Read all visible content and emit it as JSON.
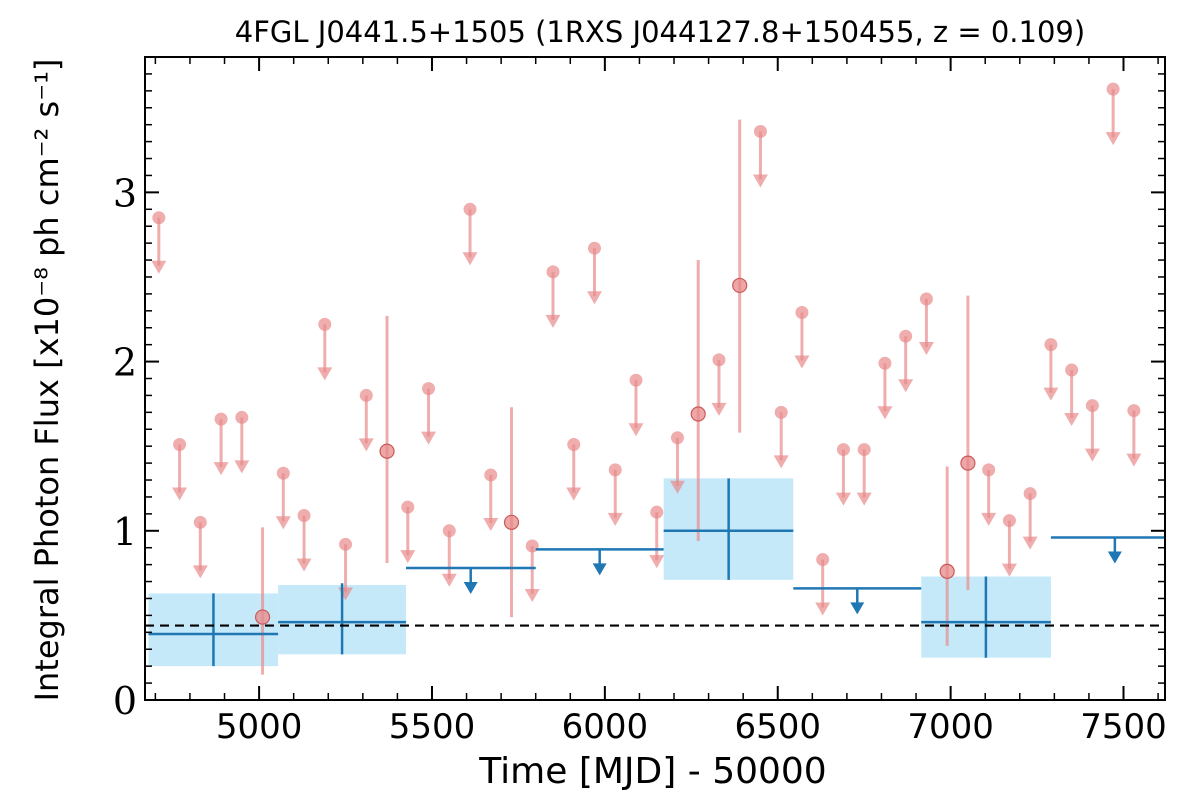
{
  "chart_data": {
    "type": "scatter",
    "title": "4FGL J0441.5+1505 (1RXS J044127.8+150455, z = 0.109)",
    "xlabel": "Time [MJD] - 50000",
    "ylabel": "Integral Photon Flux [x10⁻⁸ ph cm⁻² s⁻¹]",
    "xlim": [
      4670,
      7620
    ],
    "ylim": [
      0,
      3.8
    ],
    "x_ticks": [
      5000,
      5500,
      6000,
      6500,
      7000,
      7500
    ],
    "y_ticks": [
      0,
      1,
      2,
      3
    ],
    "x_tick_labels": [
      "5000",
      "5500",
      "6000",
      "6500",
      "7000",
      "7500"
    ],
    "y_tick_labels": [
      "0",
      "1",
      "2",
      "3"
    ],
    "grid": false,
    "average_flux": 0.44,
    "colors": {
      "fine_bins": "#e88a8a",
      "coarse_bins": "#1f77b4",
      "coarse_band": "#c6e9fa",
      "average_line": "#000000"
    },
    "series": [
      {
        "bin_width": 60,
        "points": [
          {
            "x": 4710,
            "y": 2.85,
            "upper_limit": true
          },
          {
            "x": 4770,
            "y": 1.51,
            "upper_limit": true
          },
          {
            "x": 4830,
            "y": 1.05,
            "upper_limit": true
          },
          {
            "x": 4890,
            "y": 1.66,
            "upper_limit": true
          },
          {
            "x": 4950,
            "y": 1.67,
            "upper_limit": true
          },
          {
            "x": 5010,
            "y": 0.49,
            "upper_limit": false,
            "err_low": 0.34,
            "err_high": 0.53
          },
          {
            "x": 5070,
            "y": 1.34,
            "upper_limit": true
          },
          {
            "x": 5130,
            "y": 1.09,
            "upper_limit": true
          },
          {
            "x": 5190,
            "y": 2.22,
            "upper_limit": true
          },
          {
            "x": 5250,
            "y": 0.92,
            "upper_limit": true
          },
          {
            "x": 5310,
            "y": 1.8,
            "upper_limit": true
          },
          {
            "x": 5370,
            "y": 1.47,
            "upper_limit": false,
            "err_low": 0.66,
            "err_high": 0.8
          },
          {
            "x": 5430,
            "y": 1.14,
            "upper_limit": true
          },
          {
            "x": 5490,
            "y": 1.84,
            "upper_limit": true
          },
          {
            "x": 5550,
            "y": 1.0,
            "upper_limit": true
          },
          {
            "x": 5610,
            "y": 2.9,
            "upper_limit": true
          },
          {
            "x": 5670,
            "y": 1.33,
            "upper_limit": true
          },
          {
            "x": 5730,
            "y": 1.05,
            "upper_limit": false,
            "err_low": 0.56,
            "err_high": 0.68
          },
          {
            "x": 5790,
            "y": 0.91,
            "upper_limit": true
          },
          {
            "x": 5850,
            "y": 2.53,
            "upper_limit": true
          },
          {
            "x": 5910,
            "y": 1.51,
            "upper_limit": true
          },
          {
            "x": 5970,
            "y": 2.67,
            "upper_limit": true
          },
          {
            "x": 6030,
            "y": 1.36,
            "upper_limit": true
          },
          {
            "x": 6090,
            "y": 1.89,
            "upper_limit": true
          },
          {
            "x": 6150,
            "y": 1.11,
            "upper_limit": true
          },
          {
            "x": 6210,
            "y": 1.55,
            "upper_limit": true
          },
          {
            "x": 6270,
            "y": 1.69,
            "upper_limit": false,
            "err_low": 0.75,
            "err_high": 0.91
          },
          {
            "x": 6330,
            "y": 2.01,
            "upper_limit": true
          },
          {
            "x": 6390,
            "y": 2.45,
            "upper_limit": false,
            "err_low": 0.87,
            "err_high": 0.98
          },
          {
            "x": 6450,
            "y": 3.36,
            "upper_limit": true
          },
          {
            "x": 6510,
            "y": 1.7,
            "upper_limit": true
          },
          {
            "x": 6570,
            "y": 2.29,
            "upper_limit": true
          },
          {
            "x": 6630,
            "y": 0.83,
            "upper_limit": true
          },
          {
            "x": 6690,
            "y": 1.48,
            "upper_limit": true
          },
          {
            "x": 6750,
            "y": 1.48,
            "upper_limit": true
          },
          {
            "x": 6810,
            "y": 1.99,
            "upper_limit": true
          },
          {
            "x": 6870,
            "y": 2.15,
            "upper_limit": true
          },
          {
            "x": 6930,
            "y": 2.37,
            "upper_limit": true
          },
          {
            "x": 6990,
            "y": 0.76,
            "upper_limit": false,
            "err_low": 0.44,
            "err_high": 0.62
          },
          {
            "x": 7050,
            "y": 1.4,
            "upper_limit": false,
            "err_low": 0.75,
            "err_high": 0.99
          },
          {
            "x": 7110,
            "y": 1.36,
            "upper_limit": true
          },
          {
            "x": 7170,
            "y": 1.06,
            "upper_limit": true
          },
          {
            "x": 7230,
            "y": 1.22,
            "upper_limit": true
          },
          {
            "x": 7290,
            "y": 2.1,
            "upper_limit": true
          },
          {
            "x": 7350,
            "y": 1.95,
            "upper_limit": true
          },
          {
            "x": 7410,
            "y": 1.74,
            "upper_limit": true
          },
          {
            "x": 7470,
            "y": 3.61,
            "upper_limit": true
          },
          {
            "x": 7530,
            "y": 1.71,
            "upper_limit": true
          }
        ]
      },
      {
        "points": [
          {
            "x_start": 4680,
            "x_end": 5055,
            "x": 4868,
            "y": 0.39,
            "upper_limit": false,
            "err_low": 0.19,
            "err_high": 0.24,
            "band": [
              0.2,
              0.63
            ]
          },
          {
            "x_start": 5055,
            "x_end": 5425,
            "x": 5240,
            "y": 0.46,
            "upper_limit": false,
            "err_low": 0.19,
            "err_high": 0.23,
            "band": [
              0.27,
              0.68
            ]
          },
          {
            "x_start": 5425,
            "x_end": 5800,
            "x": 5612,
            "y": 0.78,
            "upper_limit": true
          },
          {
            "x_start": 5800,
            "x_end": 6170,
            "x": 5985,
            "y": 0.89,
            "upper_limit": true
          },
          {
            "x_start": 6170,
            "x_end": 6545,
            "x": 6358,
            "y": 1.0,
            "upper_limit": false,
            "err_low": 0.29,
            "err_high": 0.31,
            "band": [
              0.71,
              1.31
            ]
          },
          {
            "x_start": 6545,
            "x_end": 6915,
            "x": 6730,
            "y": 0.66,
            "upper_limit": true
          },
          {
            "x_start": 6915,
            "x_end": 7290,
            "x": 7102,
            "y": 0.46,
            "upper_limit": false,
            "err_low": 0.21,
            "err_high": 0.27,
            "band": [
              0.25,
              0.73
            ]
          },
          {
            "x_start": 7290,
            "x_end": 7660,
            "x": 7475,
            "y": 0.96,
            "upper_limit": true
          }
        ]
      }
    ]
  }
}
